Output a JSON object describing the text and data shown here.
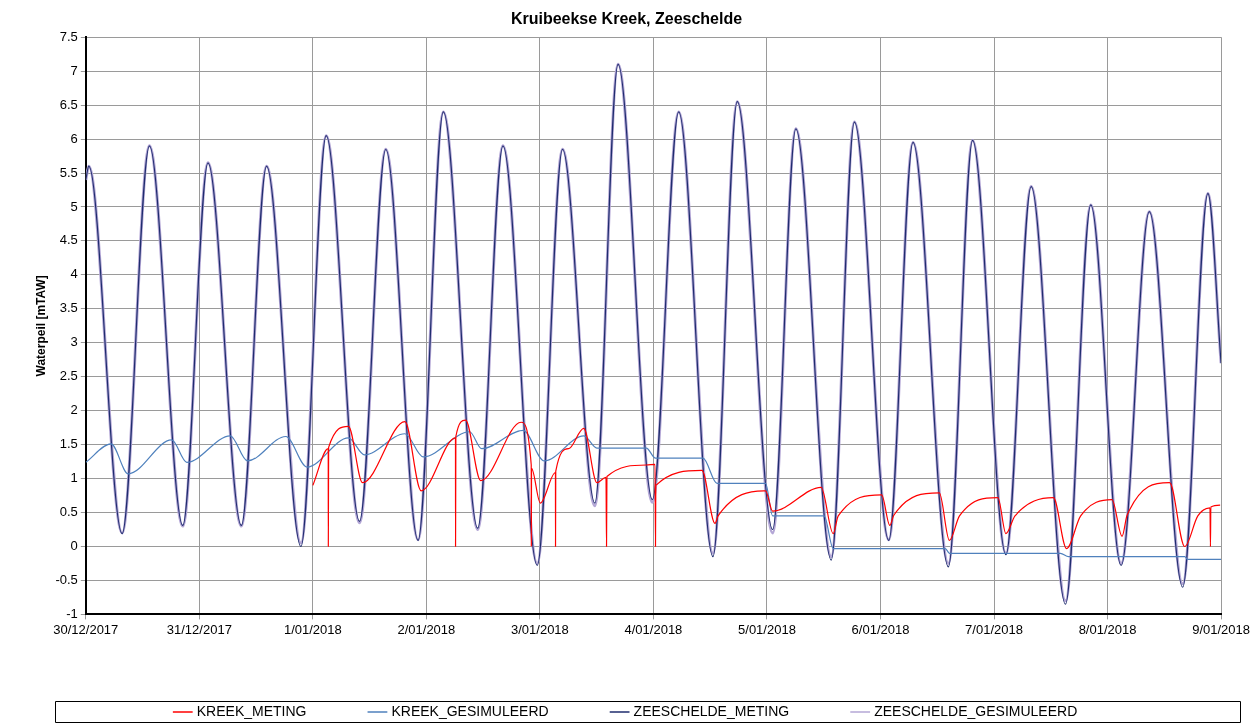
{
  "chart_data": {
    "type": "line",
    "title": "Kruibeekse Kreek, Zeeschelde",
    "ylabel": "Waterpeil [mTAW]",
    "xlim": [
      "2017-12-30",
      "2018-01-09"
    ],
    "xticks": [
      {
        "value": "2017-12-30",
        "label": "30/12/2017"
      },
      {
        "value": "2017-12-31",
        "label": "31/12/2017"
      },
      {
        "value": "2018-01-01",
        "label": "1/01/2018"
      },
      {
        "value": "2018-01-02",
        "label": "2/01/2018"
      },
      {
        "value": "2018-01-03",
        "label": "3/01/2018"
      },
      {
        "value": "2018-01-04",
        "label": "4/01/2018"
      },
      {
        "value": "2018-01-05",
        "label": "5/01/2018"
      },
      {
        "value": "2018-01-06",
        "label": "6/01/2018"
      },
      {
        "value": "2018-01-07",
        "label": "7/01/2018"
      },
      {
        "value": "2018-01-08",
        "label": "8/01/2018"
      },
      {
        "value": "2018-01-09",
        "label": "9/01/2018"
      }
    ],
    "ylim": [
      -1,
      7.5
    ],
    "yticks": [
      -1,
      -0.5,
      0,
      0.5,
      1,
      1.5,
      2,
      2.5,
      3,
      3.5,
      4,
      4.5,
      5,
      5.5,
      6,
      6.5,
      7,
      7.5
    ],
    "grid": true,
    "legend": "bottom",
    "marker": "none",
    "line_style": "solid",
    "series": [
      {
        "name": "KREEK_METING",
        "color": "#ff0000",
        "x": [
          "2018-01-01T00:00",
          "2018-01-01T03:15",
          "2018-01-01T03:16",
          "2018-01-01T03:20",
          "2018-01-01T07:31",
          "2018-01-01T10:30",
          "2018-01-01T19:28",
          "2018-01-01T22:53",
          "2018-01-02T06:09",
          "2018-01-02T06:10",
          "2018-01-02T06:14",
          "2018-01-02T08:17",
          "2018-01-02T11:29",
          "2018-01-02T20:02",
          "2018-01-02T22:10",
          "2018-01-02T22:11",
          "2018-01-02T22:14",
          "2018-01-03T00:05",
          "2018-01-03T03:17",
          "2018-01-03T03:18",
          "2018-01-03T03:21",
          "2018-01-03T06:04",
          "2018-01-03T09:16",
          "2018-01-03T12:03",
          "2018-01-03T13:58",
          "2018-01-03T14:05",
          "2018-01-03T14:10",
          "2018-01-03T22:30",
          "2018-01-04T00:20",
          "2018-01-04T00:26",
          "2018-01-04T00:30",
          "2018-01-04T10:15",
          "2018-01-04T13:01",
          "2018-01-04T13:40",
          "2018-01-04T23:42",
          "2018-01-05T01:12",
          "2018-01-05T11:27",
          "2018-01-05T14:00",
          "2018-01-05T15:04",
          "2018-01-06T00:15",
          "2018-01-06T01:58",
          "2018-01-06T02:49",
          "2018-01-06T12:26",
          "2018-01-06T14:34",
          "2018-01-06T16:42",
          "2018-01-07T00:49",
          "2018-01-07T02:31",
          "2018-01-07T04:26",
          "2018-01-07T12:33",
          "2018-01-07T15:20",
          "2018-01-07T18:19",
          "2018-01-08T00:56",
          "2018-01-08T03:04",
          "2018-01-08T04:08",
          "2018-01-08T13:07",
          "2018-01-08T16:19",
          "2018-01-08T19:05",
          "2018-01-08T21:39",
          "2018-01-08T21:45",
          "2018-01-08T21:50",
          "2018-01-08T23:48"
        ],
        "values": [
          0.9,
          1.44,
          0,
          1.46,
          1.77,
          0.94,
          1.84,
          0.82,
          1.6,
          0,
          1.62,
          1.86,
          0.97,
          1.83,
          1.2,
          0,
          1.15,
          0.64,
          1.09,
          0,
          1.11,
          1.44,
          1.74,
          0.94,
          1.02,
          0,
          1.03,
          1.2,
          1.21,
          0,
          0.9,
          1.12,
          0.34,
          0.45,
          0.82,
          0.52,
          0.87,
          0.19,
          0.45,
          0.76,
          0.31,
          0.46,
          0.79,
          0.09,
          0.45,
          0.72,
          0.19,
          0.45,
          0.72,
          -0.03,
          0.45,
          0.69,
          0.15,
          0.46,
          0.94,
          0,
          0.45,
          0.57,
          0,
          0.58,
          0.61
        ]
      },
      {
        "name": "KREEK_GESIMULEERD",
        "color": "#4f81bd",
        "x": [
          "2017-12-30T00:00",
          "2017-12-30T05:20",
          "2017-12-30T08:58",
          "2017-12-30T18:09",
          "2017-12-30T21:21",
          "2017-12-31T06:32",
          "2017-12-31T10:10",
          "2017-12-31T18:17",
          "2017-12-31T22:46",
          "2018-01-01T07:31",
          "2018-01-01T10:56",
          "2018-01-01T19:28",
          "2018-01-01T23:19",
          "2018-01-02T09:08",
          "2018-01-02T11:42",
          "2018-01-02T20:27",
          "2018-01-03T00:56",
          "2018-01-03T09:16",
          "2018-01-03T12:03",
          "2018-01-03T22:30",
          "2018-01-04T00:26",
          "2018-01-04T10:28",
          "2018-01-04T13:27",
          "2018-01-04T23:42",
          "2018-01-05T01:12",
          "2018-01-05T12:05",
          "2018-01-05T14:00",
          "2018-01-06T13:42",
          "2018-01-06T14:34",
          "2018-01-07T14:03",
          "2018-01-07T15:45",
          "2018-01-08T16:19",
          "2018-01-08T16:57",
          "2018-01-09T00:00"
        ],
        "values": [
          1.24,
          1.51,
          1.07,
          1.57,
          1.24,
          1.63,
          1.26,
          1.62,
          1.17,
          1.6,
          1.35,
          1.66,
          1.32,
          1.69,
          1.44,
          1.71,
          1.26,
          1.63,
          1.45,
          1.45,
          1.3,
          1.3,
          0.93,
          0.93,
          0.45,
          0.45,
          -0.03,
          -0.03,
          -0.1,
          -0.1,
          -0.15,
          -0.15,
          -0.19,
          -0.19
        ]
      },
      {
        "name": "ZEESCHELDE_METING",
        "color": "#1f2d6e",
        "x": [
          "2017-12-30T00:00",
          "2017-12-30T00:38",
          "2017-12-30T07:41",
          "2017-12-30T13:27",
          "2017-12-30T20:30",
          "2017-12-31T01:50",
          "2017-12-31T08:53",
          "2017-12-31T14:13",
          "2017-12-31T21:29",
          "2018-01-01T02:49",
          "2018-01-01T09:52",
          "2018-01-01T15:25",
          "2018-01-01T22:15",
          "2018-01-02T03:35",
          "2018-01-02T10:51",
          "2018-01-02T16:11",
          "2018-01-02T23:26",
          "2018-01-03T04:47",
          "2018-01-03T11:37",
          "2018-01-03T16:31",
          "2018-01-03T23:47",
          "2018-01-04T05:20",
          "2018-01-04T12:35",
          "2018-01-04T17:43",
          "2018-01-05T01:12",
          "2018-01-05T06:06",
          "2018-01-05T13:35",
          "2018-01-05T18:29",
          "2018-01-06T01:45",
          "2018-01-06T06:52",
          "2018-01-06T14:21",
          "2018-01-06T19:28",
          "2018-01-07T02:31",
          "2018-01-07T07:51",
          "2018-01-07T15:07",
          "2018-01-07T20:27",
          "2018-01-08T02:52",
          "2018-01-08T08:50",
          "2018-01-08T15:53",
          "2018-01-08T21:13",
          "2018-01-09T00:00"
        ],
        "values": [
          5.4,
          5.6,
          0.19,
          5.9,
          0.31,
          5.65,
          0.31,
          5.6,
          0,
          6.05,
          0.37,
          5.85,
          0.09,
          6.4,
          0.27,
          5.9,
          -0.28,
          5.85,
          0.64,
          7.1,
          0.69,
          6.4,
          -0.15,
          6.55,
          0.25,
          6.15,
          -0.2,
          6.25,
          0.09,
          5.95,
          -0.3,
          5.98,
          -0.12,
          5.3,
          -0.85,
          5.03,
          -0.28,
          4.93,
          -0.6,
          5.2,
          2.7
        ]
      },
      {
        "name": "ZEESCHELDE_GESIMULEERD",
        "color": "#b4a7d6",
        "x": [
          "2017-12-30T00:00",
          "2017-12-30T00:38",
          "2017-12-30T07:41",
          "2017-12-30T13:27",
          "2017-12-30T20:30",
          "2017-12-31T01:50",
          "2017-12-31T08:53",
          "2017-12-31T14:13",
          "2017-12-31T21:29",
          "2018-01-01T02:49",
          "2018-01-01T09:52",
          "2018-01-01T15:25",
          "2018-01-01T22:15",
          "2018-01-02T03:35",
          "2018-01-02T10:51",
          "2018-01-02T16:11",
          "2018-01-02T23:26",
          "2018-01-03T04:47",
          "2018-01-03T11:37",
          "2018-01-03T16:31",
          "2018-01-03T23:47",
          "2018-01-04T05:20",
          "2018-01-04T12:35",
          "2018-01-04T17:43",
          "2018-01-05T01:12",
          "2018-01-05T06:06",
          "2018-01-05T13:35",
          "2018-01-05T18:29",
          "2018-01-06T01:45",
          "2018-01-06T06:52",
          "2018-01-06T14:21",
          "2018-01-06T19:28",
          "2018-01-07T02:31",
          "2018-01-07T07:51",
          "2018-01-07T15:07",
          "2018-01-07T20:27",
          "2018-01-08T02:52",
          "2018-01-08T08:50",
          "2018-01-08T15:53",
          "2018-01-08T21:13",
          "2018-01-09T00:00"
        ],
        "values": [
          5.4,
          5.6,
          0.2,
          5.9,
          0.3,
          5.65,
          0.3,
          5.6,
          0.05,
          6.05,
          0.35,
          5.85,
          0.1,
          6.4,
          0.25,
          5.9,
          -0.25,
          5.85,
          0.6,
          7.1,
          0.65,
          6.4,
          -0.1,
          6.55,
          0.2,
          6.15,
          -0.15,
          6.25,
          0.1,
          5.95,
          -0.25,
          5.98,
          -0.1,
          5.3,
          -0.8,
          5.03,
          -0.25,
          4.93,
          -0.55,
          5.2,
          2.7
        ]
      }
    ]
  }
}
